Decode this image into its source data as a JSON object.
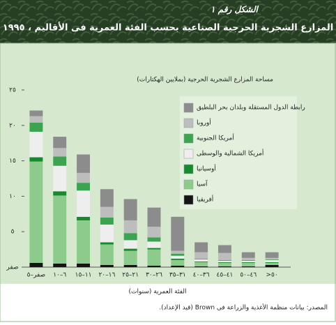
{
  "chart_data": {
    "type": "stacked-bar",
    "figure_label": "الشكل رقم ١",
    "title": "المزارع الشجرية الحرجية الصناعية بحسب الفئة العمرية فى الأقاليم ، ١٩٩٥",
    "y_label": "مساحة المزارع الشجرية الحرجية (بملايين الهكتارات)",
    "x_label": "الفئة العمرية (سنوات)",
    "source": "المصدر: بيانات منظمة الأغذية والزراعة فى Brown (قيد الإعداد).",
    "categories": [
      "صفر–٥",
      "٦–١٠",
      "١١–١٥",
      "١٦–٢٠",
      "٢١–٢٥",
      "٢٦–٣٠",
      "٣١–٣٥",
      "٣٦–٤٠",
      "٤١–٤٥",
      "٤٦–٥٠",
      "٥٠<"
    ],
    "series": [
      {
        "name": "أفريقيا",
        "color": "#141414",
        "values": [
          0.6,
          0.5,
          0.5,
          0.3,
          0.3,
          0.2,
          0.2,
          0.1,
          0.1,
          0.1,
          0.3
        ]
      },
      {
        "name": "آسيا",
        "color": "#8ccb8c",
        "values": [
          14.3,
          9.6,
          6.1,
          2.9,
          2.0,
          2.3,
          0.8,
          0.6,
          0.5,
          0.5,
          0.3
        ]
      },
      {
        "name": "أوسيانيا",
        "color": "#168a2c",
        "values": [
          0.6,
          0.6,
          0.5,
          0.3,
          0.3,
          0.2,
          0.2,
          0.1,
          0.1,
          0.1,
          0.1
        ]
      },
      {
        "name": "أمريكا الشمالية والوسطى",
        "color": "#eeeeee",
        "values": [
          3.6,
          3.6,
          3.7,
          2.5,
          1.2,
          0.9,
          0.4,
          0.3,
          0.2,
          0.2,
          0.3
        ]
      },
      {
        "name": "أمريكا الجنوبية",
        "color": "#3ca450",
        "values": [
          1.3,
          1.3,
          1.1,
          1.0,
          1.0,
          0.6,
          0.3,
          0.1,
          0.1,
          0.1,
          0.1
        ]
      },
      {
        "name": "أوروبا",
        "color": "#bdbdbd",
        "values": [
          0.9,
          1.2,
          1.4,
          1.5,
          1.8,
          1.5,
          0.4,
          0.9,
          1.0,
          0.3,
          0.2
        ]
      },
      {
        "name": "رابطة الدول المستقلة وبلدان بحر البلطيق",
        "color": "#8c8c8c",
        "values": [
          0.8,
          1.6,
          2.6,
          2.5,
          3.0,
          2.7,
          4.8,
          1.4,
          1.1,
          0.8,
          0.8
        ]
      }
    ],
    "ylim": [
      0,
      25
    ],
    "yticks": [
      {
        "value": 0,
        "label": "صفر"
      },
      {
        "value": 5,
        "label": "٥"
      },
      {
        "value": 10,
        "label": "١٠"
      },
      {
        "value": 15,
        "label": "١٥"
      },
      {
        "value": 20,
        "label": "٢٠"
      },
      {
        "value": 25,
        "label": "٢٥"
      }
    ],
    "legend_position": "top-right"
  }
}
